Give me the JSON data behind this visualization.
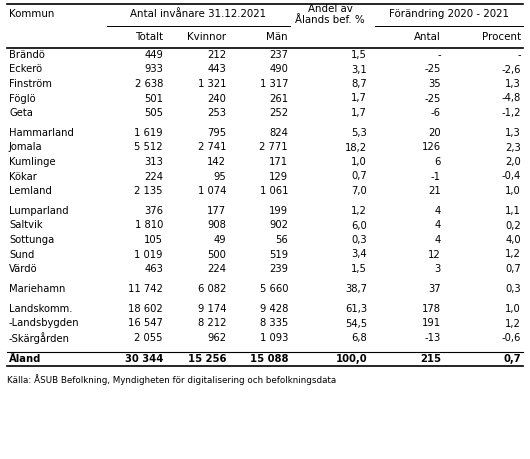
{
  "rows": [
    [
      "Brändö",
      "449",
      "212",
      "237",
      "1,5",
      "-",
      "-"
    ],
    [
      "Eckerö",
      "933",
      "443",
      "490",
      "3,1",
      "-25",
      "-2,6"
    ],
    [
      "Finström",
      "2 638",
      "1 321",
      "1 317",
      "8,7",
      "35",
      "1,3"
    ],
    [
      "Föglö",
      "501",
      "240",
      "261",
      "1,7",
      "-25",
      "-4,8"
    ],
    [
      "Geta",
      "505",
      "253",
      "252",
      "1,7",
      "-6",
      "-1,2"
    ],
    [
      "",
      "",
      "",
      "",
      "",
      "",
      ""
    ],
    [
      "Hammarland",
      "1 619",
      "795",
      "824",
      "5,3",
      "20",
      "1,3"
    ],
    [
      "Jomala",
      "5 512",
      "2 741",
      "2 771",
      "18,2",
      "126",
      "2,3"
    ],
    [
      "Kumlinge",
      "313",
      "142",
      "171",
      "1,0",
      "6",
      "2,0"
    ],
    [
      "Kökar",
      "224",
      "95",
      "129",
      "0,7",
      "-1",
      "-0,4"
    ],
    [
      "Lemland",
      "2 135",
      "1 074",
      "1 061",
      "7,0",
      "21",
      "1,0"
    ],
    [
      "",
      "",
      "",
      "",
      "",
      "",
      ""
    ],
    [
      "Lumparland",
      "376",
      "177",
      "199",
      "1,2",
      "4",
      "1,1"
    ],
    [
      "Saltvik",
      "1 810",
      "908",
      "902",
      "6,0",
      "4",
      "0,2"
    ],
    [
      "Sottunga",
      "105",
      "49",
      "56",
      "0,3",
      "4",
      "4,0"
    ],
    [
      "Sund",
      "1 019",
      "500",
      "519",
      "3,4",
      "12",
      "1,2"
    ],
    [
      "Värdö",
      "463",
      "224",
      "239",
      "1,5",
      "3",
      "0,7"
    ],
    [
      "",
      "",
      "",
      "",
      "",
      "",
      ""
    ],
    [
      "Mariehamn",
      "11 742",
      "6 082",
      "5 660",
      "38,7",
      "37",
      "0,3"
    ],
    [
      "",
      "",
      "",
      "",
      "",
      "",
      ""
    ],
    [
      "Landskomm.",
      "18 602",
      "9 174",
      "9 428",
      "61,3",
      "178",
      "1,0"
    ],
    [
      "-Landsbygden",
      "16 547",
      "8 212",
      "8 335",
      "54,5",
      "191",
      "1,2"
    ],
    [
      "-Skärgården",
      "2 055",
      "962",
      "1 093",
      "6,8",
      "-13",
      "-0,6"
    ]
  ],
  "aland_row": [
    "Åland",
    "30 344",
    "15 256",
    "15 088",
    "100,0",
    "215",
    "0,7"
  ],
  "footer": "Källa: ÅSUB Befolkning, Myndigheten för digitalisering och befolkningsdata",
  "bg_color": "#ffffff",
  "figsize": [
    5.3,
    4.59
  ],
  "dpi": 100
}
